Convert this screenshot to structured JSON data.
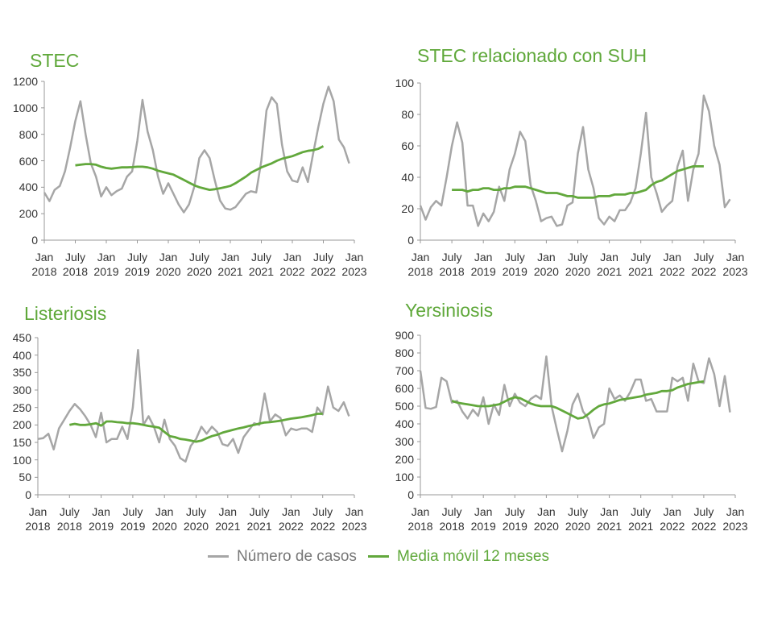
{
  "chart_data": [
    {
      "type": "line",
      "title": "STEC",
      "categories": [
        "Jan 2018",
        null,
        null,
        null,
        null,
        null,
        "July 2018",
        null,
        null,
        null,
        null,
        null,
        "Jan 2019",
        null,
        null,
        null,
        null,
        null,
        "July 2019",
        null,
        null,
        null,
        null,
        null,
        "Jan 2020",
        null,
        null,
        null,
        null,
        null,
        "July 2020",
        null,
        null,
        null,
        null,
        null,
        "Jan 2021",
        null,
        null,
        null,
        null,
        null,
        "July 2021",
        null,
        null,
        null,
        null,
        null,
        "Jan 2022",
        null,
        null,
        null,
        null,
        null,
        "July 2022",
        null,
        null,
        null,
        null,
        null,
        "Jan 2023"
      ],
      "ylim": [
        0,
        1200
      ],
      "yticks": [
        0,
        200,
        400,
        600,
        800,
        1000,
        1200
      ],
      "series": [
        {
          "name": "Número de casos",
          "color": "#a6a6a6",
          "values": [
            360,
            295,
            380,
            410,
            520,
            700,
            900,
            1050,
            800,
            580,
            480,
            330,
            400,
            340,
            370,
            390,
            480,
            520,
            750,
            1060,
            820,
            680,
            480,
            350,
            430,
            350,
            270,
            210,
            270,
            400,
            620,
            680,
            620,
            450,
            300,
            240,
            230,
            250,
            300,
            350,
            370,
            360,
            600,
            980,
            1080,
            1030,
            720,
            520,
            450,
            440,
            550,
            440,
            650,
            850,
            1030,
            1160,
            1050,
            760,
            700,
            580,
            null
          ]
        },
        {
          "name": "Media móvil 12 meses",
          "color": "#62a83c",
          "values": [
            null,
            null,
            null,
            null,
            null,
            null,
            565,
            570,
            575,
            575,
            570,
            555,
            545,
            540,
            545,
            550,
            550,
            552,
            555,
            555,
            550,
            540,
            525,
            515,
            505,
            495,
            475,
            455,
            435,
            415,
            400,
            390,
            380,
            385,
            392,
            400,
            410,
            430,
            455,
            480,
            510,
            530,
            550,
            565,
            580,
            600,
            615,
            625,
            635,
            650,
            665,
            675,
            680,
            690,
            710,
            null,
            null,
            null,
            null,
            null,
            null
          ]
        }
      ]
    },
    {
      "type": "line",
      "title": "STEC relacionado con SUH",
      "categories": [
        "Jan 2018",
        null,
        null,
        null,
        null,
        null,
        "July 2018",
        null,
        null,
        null,
        null,
        null,
        "Jan 2019",
        null,
        null,
        null,
        null,
        null,
        "July 2019",
        null,
        null,
        null,
        null,
        null,
        "Jan 2020",
        null,
        null,
        null,
        null,
        null,
        "July 2020",
        null,
        null,
        null,
        null,
        null,
        "Jan 2021",
        null,
        null,
        null,
        null,
        null,
        "July 2021",
        null,
        null,
        null,
        null,
        null,
        "Jan 2022",
        null,
        null,
        null,
        null,
        null,
        "July 2022",
        null,
        null,
        null,
        null,
        null,
        "Jan 2023"
      ],
      "ylim": [
        0,
        100
      ],
      "yticks": [
        0,
        20,
        40,
        60,
        80,
        100
      ],
      "series": [
        {
          "color": "#a6a6a6",
          "values": [
            22,
            13,
            21,
            25,
            22,
            40,
            60,
            75,
            62,
            22,
            22,
            9,
            17,
            12,
            18,
            34,
            25,
            45,
            55,
            69,
            63,
            35,
            25,
            12,
            14,
            15,
            9,
            10,
            22,
            24,
            55,
            72,
            45,
            33,
            14,
            10,
            15,
            12,
            19,
            19,
            24,
            33,
            55,
            81,
            40,
            30,
            18,
            22,
            25,
            47,
            57,
            25,
            45,
            55,
            92,
            82,
            60,
            48,
            21,
            26,
            null
          ]
        },
        {
          "color": "#62a83c",
          "values": [
            null,
            null,
            null,
            null,
            null,
            null,
            32,
            32,
            32,
            31,
            32,
            32,
            33,
            33,
            32,
            32,
            33,
            33,
            34,
            34,
            34,
            33,
            32,
            31,
            30,
            30,
            30,
            29,
            28,
            28,
            27,
            27,
            27,
            27,
            28,
            28,
            28,
            29,
            29,
            29,
            30,
            30,
            31,
            32,
            35,
            37,
            38,
            40,
            42,
            44,
            45,
            46,
            47,
            47,
            47,
            null,
            null,
            null,
            null,
            null,
            null
          ]
        }
      ]
    },
    {
      "type": "line",
      "title": "Listeriosis",
      "categories": [
        "Jan 2018",
        null,
        null,
        null,
        null,
        null,
        "July 2018",
        null,
        null,
        null,
        null,
        null,
        "Jan 2019",
        null,
        null,
        null,
        null,
        null,
        "July 2019",
        null,
        null,
        null,
        null,
        null,
        "Jan 2020",
        null,
        null,
        null,
        null,
        null,
        "July 2020",
        null,
        null,
        null,
        null,
        null,
        "Jan 2021",
        null,
        null,
        null,
        null,
        null,
        "July 2021",
        null,
        null,
        null,
        null,
        null,
        "Jan 2022",
        null,
        null,
        null,
        null,
        null,
        "July 2022",
        null,
        null,
        null,
        null,
        null,
        "Jan 2023"
      ],
      "ylim": [
        0,
        450
      ],
      "yticks": [
        0,
        50,
        100,
        150,
        200,
        250,
        300,
        350,
        400,
        450
      ],
      "series": [
        {
          "color": "#a6a6a6",
          "values": [
            160,
            162,
            175,
            130,
            190,
            215,
            240,
            260,
            245,
            225,
            200,
            165,
            235,
            150,
            160,
            160,
            195,
            160,
            250,
            415,
            200,
            225,
            195,
            150,
            215,
            160,
            140,
            105,
            95,
            140,
            160,
            195,
            175,
            195,
            180,
            145,
            140,
            160,
            120,
            165,
            185,
            205,
            200,
            290,
            210,
            230,
            220,
            170,
            190,
            185,
            190,
            190,
            180,
            250,
            230,
            310,
            250,
            240,
            265,
            225,
            null
          ]
        },
        {
          "color": "#62a83c",
          "values": [
            null,
            null,
            null,
            null,
            null,
            null,
            200,
            203,
            200,
            200,
            202,
            205,
            198,
            210,
            210,
            208,
            207,
            205,
            205,
            203,
            200,
            197,
            195,
            192,
            180,
            168,
            165,
            160,
            158,
            155,
            152,
            155,
            162,
            168,
            172,
            178,
            182,
            186,
            190,
            193,
            197,
            200,
            204,
            207,
            208,
            210,
            212,
            215,
            218,
            220,
            222,
            225,
            228,
            232,
            232,
            null,
            null,
            null,
            null,
            null,
            null
          ]
        }
      ]
    },
    {
      "type": "line",
      "title": "Yersiniosis",
      "categories": [
        "Jan 2018",
        null,
        null,
        null,
        null,
        null,
        "July 2018",
        null,
        null,
        null,
        null,
        null,
        "Jan 2019",
        null,
        null,
        null,
        null,
        null,
        "July 2019",
        null,
        null,
        null,
        null,
        null,
        "Jan 2020",
        null,
        null,
        null,
        null,
        null,
        "July 2020",
        null,
        null,
        null,
        null,
        null,
        "Jan 2021",
        null,
        null,
        null,
        null,
        null,
        "July 2021",
        null,
        null,
        null,
        null,
        null,
        "Jan 2022",
        null,
        null,
        null,
        null,
        null,
        "July 2022",
        null,
        null,
        null,
        null,
        null,
        "Jan 2023"
      ],
      "ylim": [
        0,
        900
      ],
      "yticks": [
        0,
        100,
        200,
        300,
        400,
        500,
        600,
        700,
        800,
        900
      ],
      "series": [
        {
          "color": "#a6a6a6",
          "values": [
            700,
            490,
            485,
            495,
            660,
            640,
            520,
            530,
            470,
            430,
            480,
            445,
            550,
            400,
            510,
            450,
            620,
            500,
            570,
            520,
            500,
            540,
            560,
            540,
            780,
            500,
            370,
            245,
            360,
            510,
            570,
            470,
            430,
            320,
            380,
            400,
            600,
            540,
            560,
            530,
            580,
            650,
            650,
            530,
            540,
            470,
            470,
            470,
            660,
            640,
            660,
            530,
            740,
            640,
            630,
            770,
            680,
            500,
            670,
            465,
            null
          ]
        },
        {
          "color": "#62a83c",
          "values": [
            null,
            null,
            null,
            null,
            null,
            null,
            530,
            520,
            515,
            510,
            505,
            500,
            500,
            500,
            505,
            510,
            525,
            540,
            550,
            545,
            530,
            515,
            505,
            500,
            500,
            500,
            490,
            475,
            460,
            445,
            430,
            435,
            455,
            480,
            500,
            510,
            515,
            525,
            535,
            540,
            545,
            550,
            555,
            565,
            570,
            575,
            585,
            585,
            590,
            605,
            615,
            625,
            630,
            635,
            640,
            null,
            null,
            null,
            null,
            null,
            null
          ]
        }
      ]
    }
  ]
}
